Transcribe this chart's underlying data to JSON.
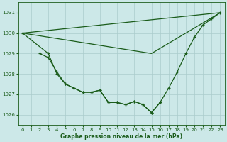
{
  "xlabel": "Graphe pression niveau de la mer (hPa)",
  "bg_color": "#cce8e8",
  "grid_color": "#aacccc",
  "line_color": "#1a5c1a",
  "x": [
    0,
    1,
    2,
    3,
    4,
    5,
    6,
    7,
    8,
    9,
    10,
    11,
    12,
    13,
    14,
    15,
    16,
    17,
    18,
    19,
    20,
    21,
    22,
    23
  ],
  "series1": [
    1030.0,
    null,
    null,
    1029.0,
    1028.0,
    1027.5,
    1027.3,
    1027.1,
    1027.1,
    1027.2,
    1026.6,
    1026.6,
    1026.5,
    1026.65,
    1026.5,
    1026.1,
    1026.6,
    1027.3,
    1028.1,
    1029.0,
    1029.8,
    1030.4,
    1030.7,
    1031.0
  ],
  "series2": [
    null,
    null,
    1029.0,
    1028.8,
    1028.1,
    1027.5,
    1027.3,
    1027.1,
    1027.1,
    1027.2,
    1026.6,
    1026.6,
    1026.5,
    1026.65,
    1026.5,
    1026.1,
    1026.6,
    null,
    null,
    null,
    null,
    null,
    null,
    null
  ],
  "series3a": [
    [
      0,
      1030.0
    ],
    [
      23,
      1031.0
    ]
  ],
  "series3b": [
    [
      0,
      1030.0
    ],
    [
      15,
      1029.0
    ],
    [
      23,
      1031.0
    ]
  ],
  "ylim": [
    1025.5,
    1031.5
  ],
  "yticks": [
    1026,
    1027,
    1028,
    1029,
    1030,
    1031
  ],
  "xticks": [
    0,
    1,
    2,
    3,
    4,
    5,
    6,
    7,
    8,
    9,
    10,
    11,
    12,
    13,
    14,
    15,
    16,
    17,
    18,
    19,
    20,
    21,
    22,
    23
  ]
}
